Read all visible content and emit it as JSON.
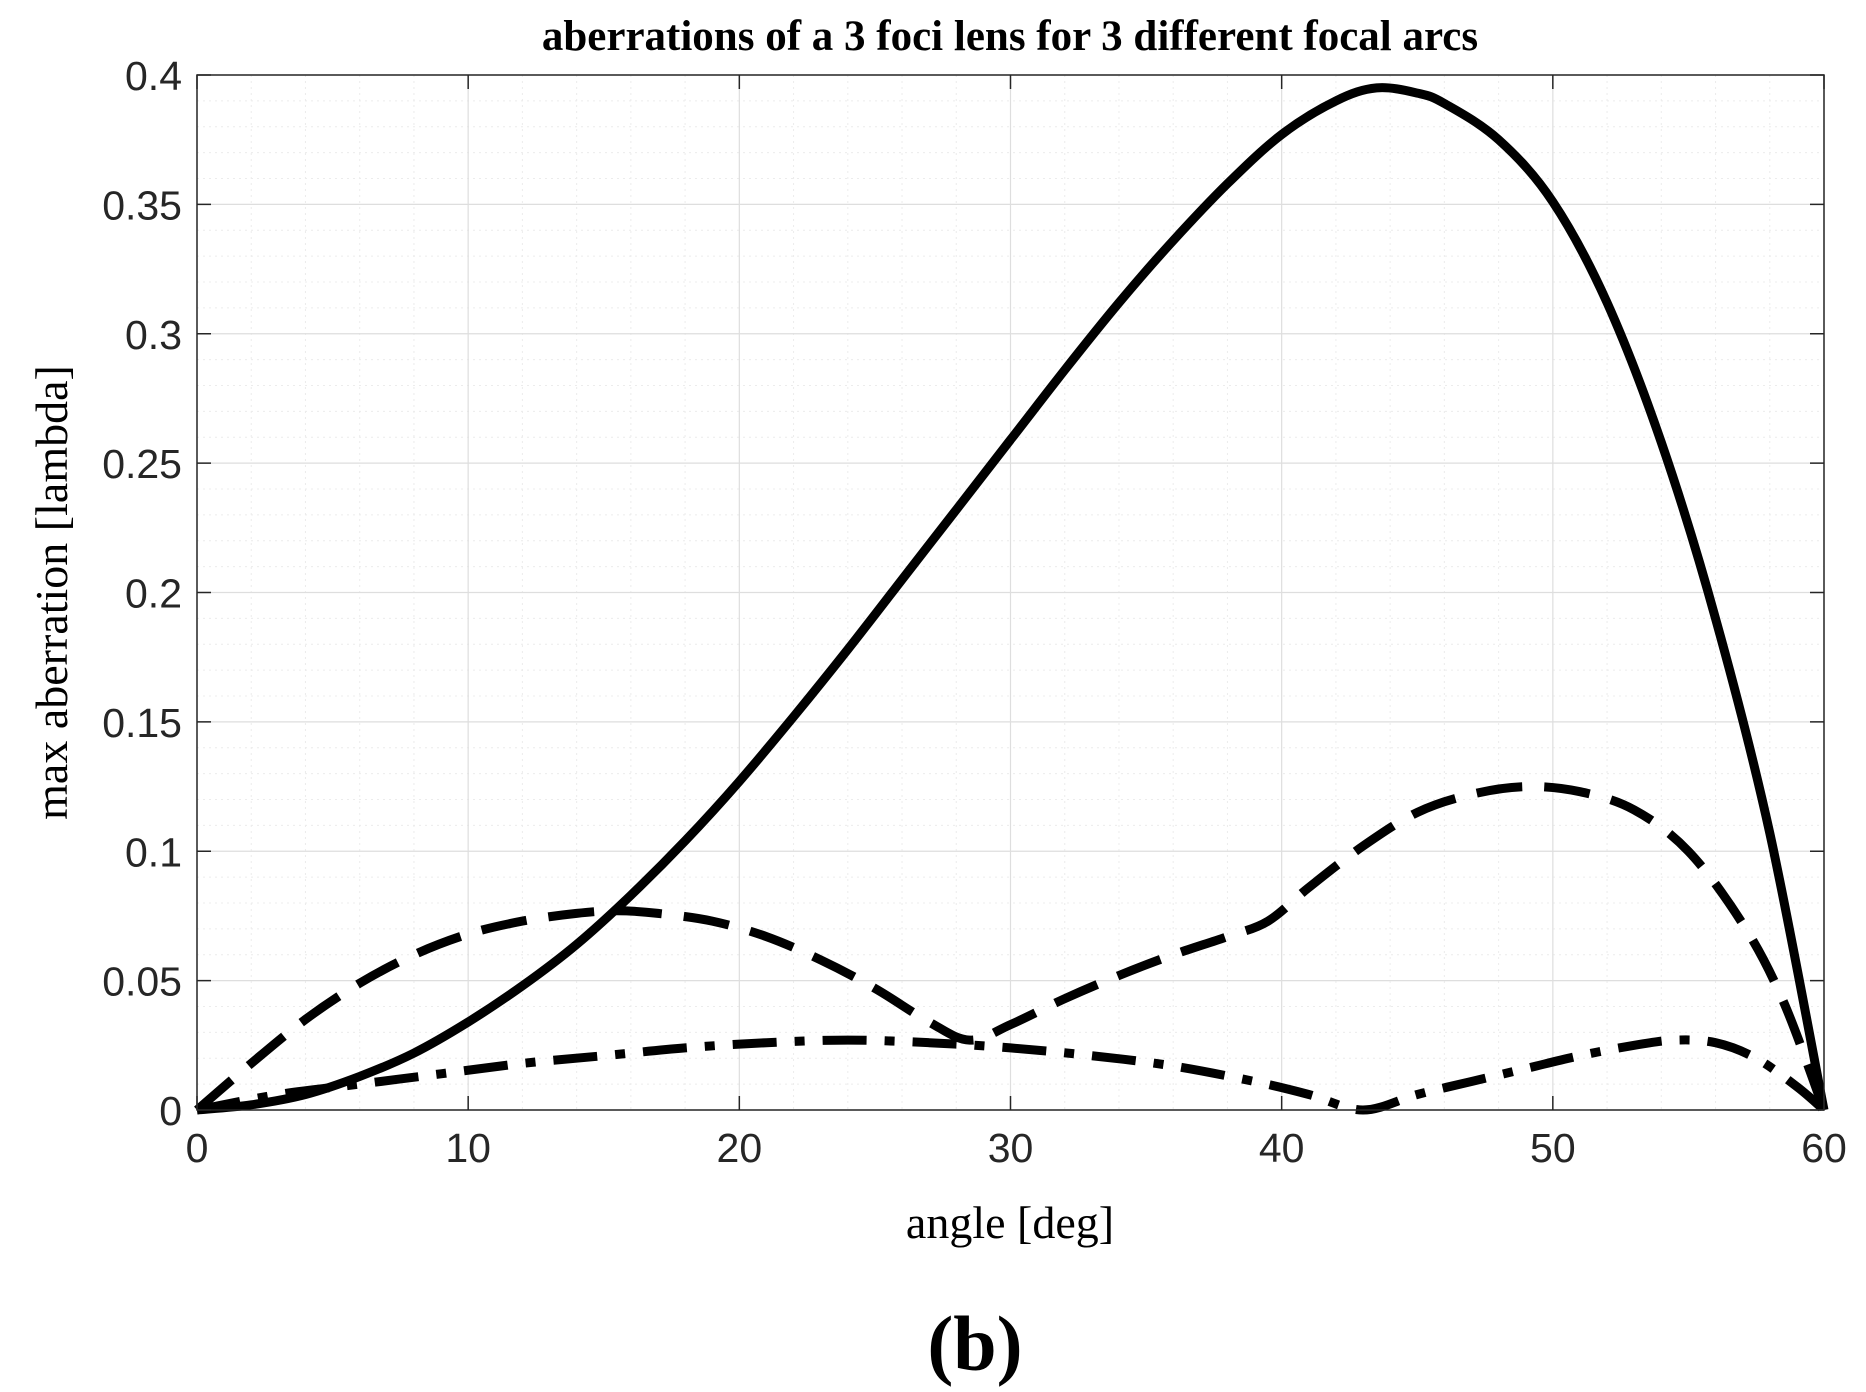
{
  "chart_data": {
    "type": "line",
    "title": "aberrations of a 3 foci lens for 3 different focal arcs",
    "xlabel": "angle [deg]",
    "ylabel": "max aberration [lambda]",
    "xlim": [
      0,
      60
    ],
    "ylim": [
      0,
      0.4
    ],
    "xticks": [
      0,
      10,
      20,
      30,
      40,
      50,
      60
    ],
    "xtick_labels": [
      "0",
      "10",
      "20",
      "30",
      "40",
      "50",
      "60"
    ],
    "yticks": [
      0,
      0.05,
      0.1,
      0.15,
      0.2,
      0.25,
      0.3,
      0.35,
      0.4
    ],
    "ytick_labels": [
      "0",
      "0.05",
      "0.1",
      "0.15",
      "0.2",
      "0.25",
      "0.3",
      "0.35",
      "0.4"
    ],
    "grid": true,
    "minor_grid": true,
    "panel_label": "(b)",
    "series": [
      {
        "name": "solid",
        "style": "solid",
        "color": "#000000",
        "x": [
          0,
          2,
          4,
          6,
          8,
          10,
          12,
          14,
          16,
          18,
          20,
          22,
          24,
          26,
          28,
          30,
          32,
          34,
          36,
          38,
          40,
          42,
          43.5,
          45,
          46,
          48,
          50,
          52,
          54,
          56,
          58,
          60
        ],
        "y": [
          0,
          0.002,
          0.006,
          0.013,
          0.022,
          0.034,
          0.048,
          0.064,
          0.083,
          0.104,
          0.127,
          0.152,
          0.178,
          0.205,
          0.232,
          0.259,
          0.286,
          0.312,
          0.336,
          0.358,
          0.377,
          0.39,
          0.395,
          0.393,
          0.389,
          0.375,
          0.351,
          0.312,
          0.258,
          0.19,
          0.107,
          0
        ]
      },
      {
        "name": "dashed",
        "style": "dashed",
        "color": "#000000",
        "x": [
          0,
          2,
          4,
          6,
          8,
          10,
          12,
          14,
          15.5,
          17,
          19,
          21,
          23,
          25,
          27,
          28.5,
          30,
          32,
          34,
          36,
          38,
          39.5,
          41,
          43,
          45,
          47,
          49,
          51,
          53,
          55,
          57,
          58.5,
          60
        ],
        "y": [
          0,
          0.018,
          0.035,
          0.049,
          0.06,
          0.068,
          0.073,
          0.076,
          0.077,
          0.076,
          0.073,
          0.067,
          0.058,
          0.047,
          0.034,
          0.027,
          0.033,
          0.043,
          0.052,
          0.06,
          0.067,
          0.073,
          0.086,
          0.102,
          0.115,
          0.122,
          0.125,
          0.123,
          0.116,
          0.1,
          0.072,
          0.042,
          0
        ]
      },
      {
        "name": "dash-dot",
        "style": "dashdot",
        "color": "#000000",
        "x": [
          0,
          3,
          6,
          9,
          12,
          15,
          18,
          21,
          24,
          27,
          30,
          33,
          36,
          39,
          41,
          43,
          45,
          47,
          49,
          51,
          53,
          54.5,
          56,
          57.5,
          59,
          60
        ],
        "y": [
          0,
          0.006,
          0.01,
          0.014,
          0.018,
          0.021,
          0.024,
          0.026,
          0.027,
          0.026,
          0.024,
          0.021,
          0.017,
          0.011,
          0.006,
          0,
          0.006,
          0.011,
          0.016,
          0.021,
          0.025,
          0.027,
          0.026,
          0.02,
          0.009,
          0
        ]
      }
    ]
  }
}
